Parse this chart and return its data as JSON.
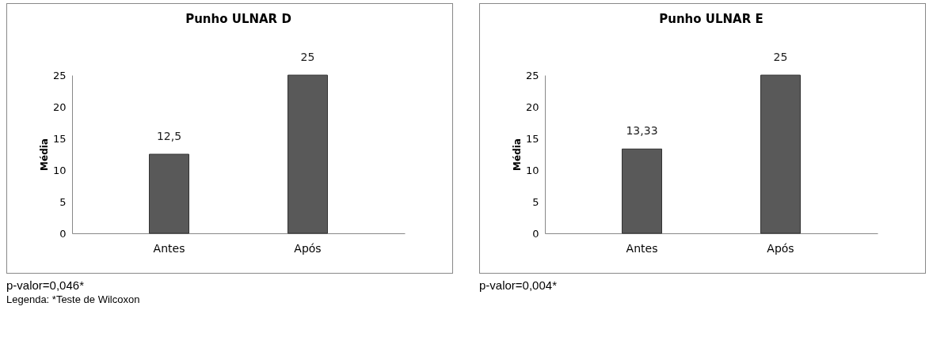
{
  "chart_data": [
    {
      "type": "bar",
      "title": "Punho ULNAR D",
      "ylabel": "Média",
      "categories": [
        "Antes",
        "Após"
      ],
      "values": [
        12.5,
        25
      ],
      "value_labels": [
        "12,5",
        "25"
      ],
      "color": "#595959",
      "ylim": [
        0,
        25
      ],
      "yticks": [
        0,
        5,
        10,
        15,
        20,
        25
      ],
      "annotations": [
        "p-valor=0,046*",
        "Legenda: *Teste de Wilcoxon"
      ]
    },
    {
      "type": "bar",
      "title": "Punho ULNAR E",
      "ylabel": "Média",
      "categories": [
        "Antes",
        "Após"
      ],
      "values": [
        13.33,
        25
      ],
      "value_labels": [
        "13,33",
        "25"
      ],
      "color": "#595959",
      "ylim": [
        0,
        25
      ],
      "yticks": [
        0,
        5,
        10,
        15,
        20,
        25
      ],
      "annotations": [
        "p-valor=0,004*"
      ]
    }
  ]
}
